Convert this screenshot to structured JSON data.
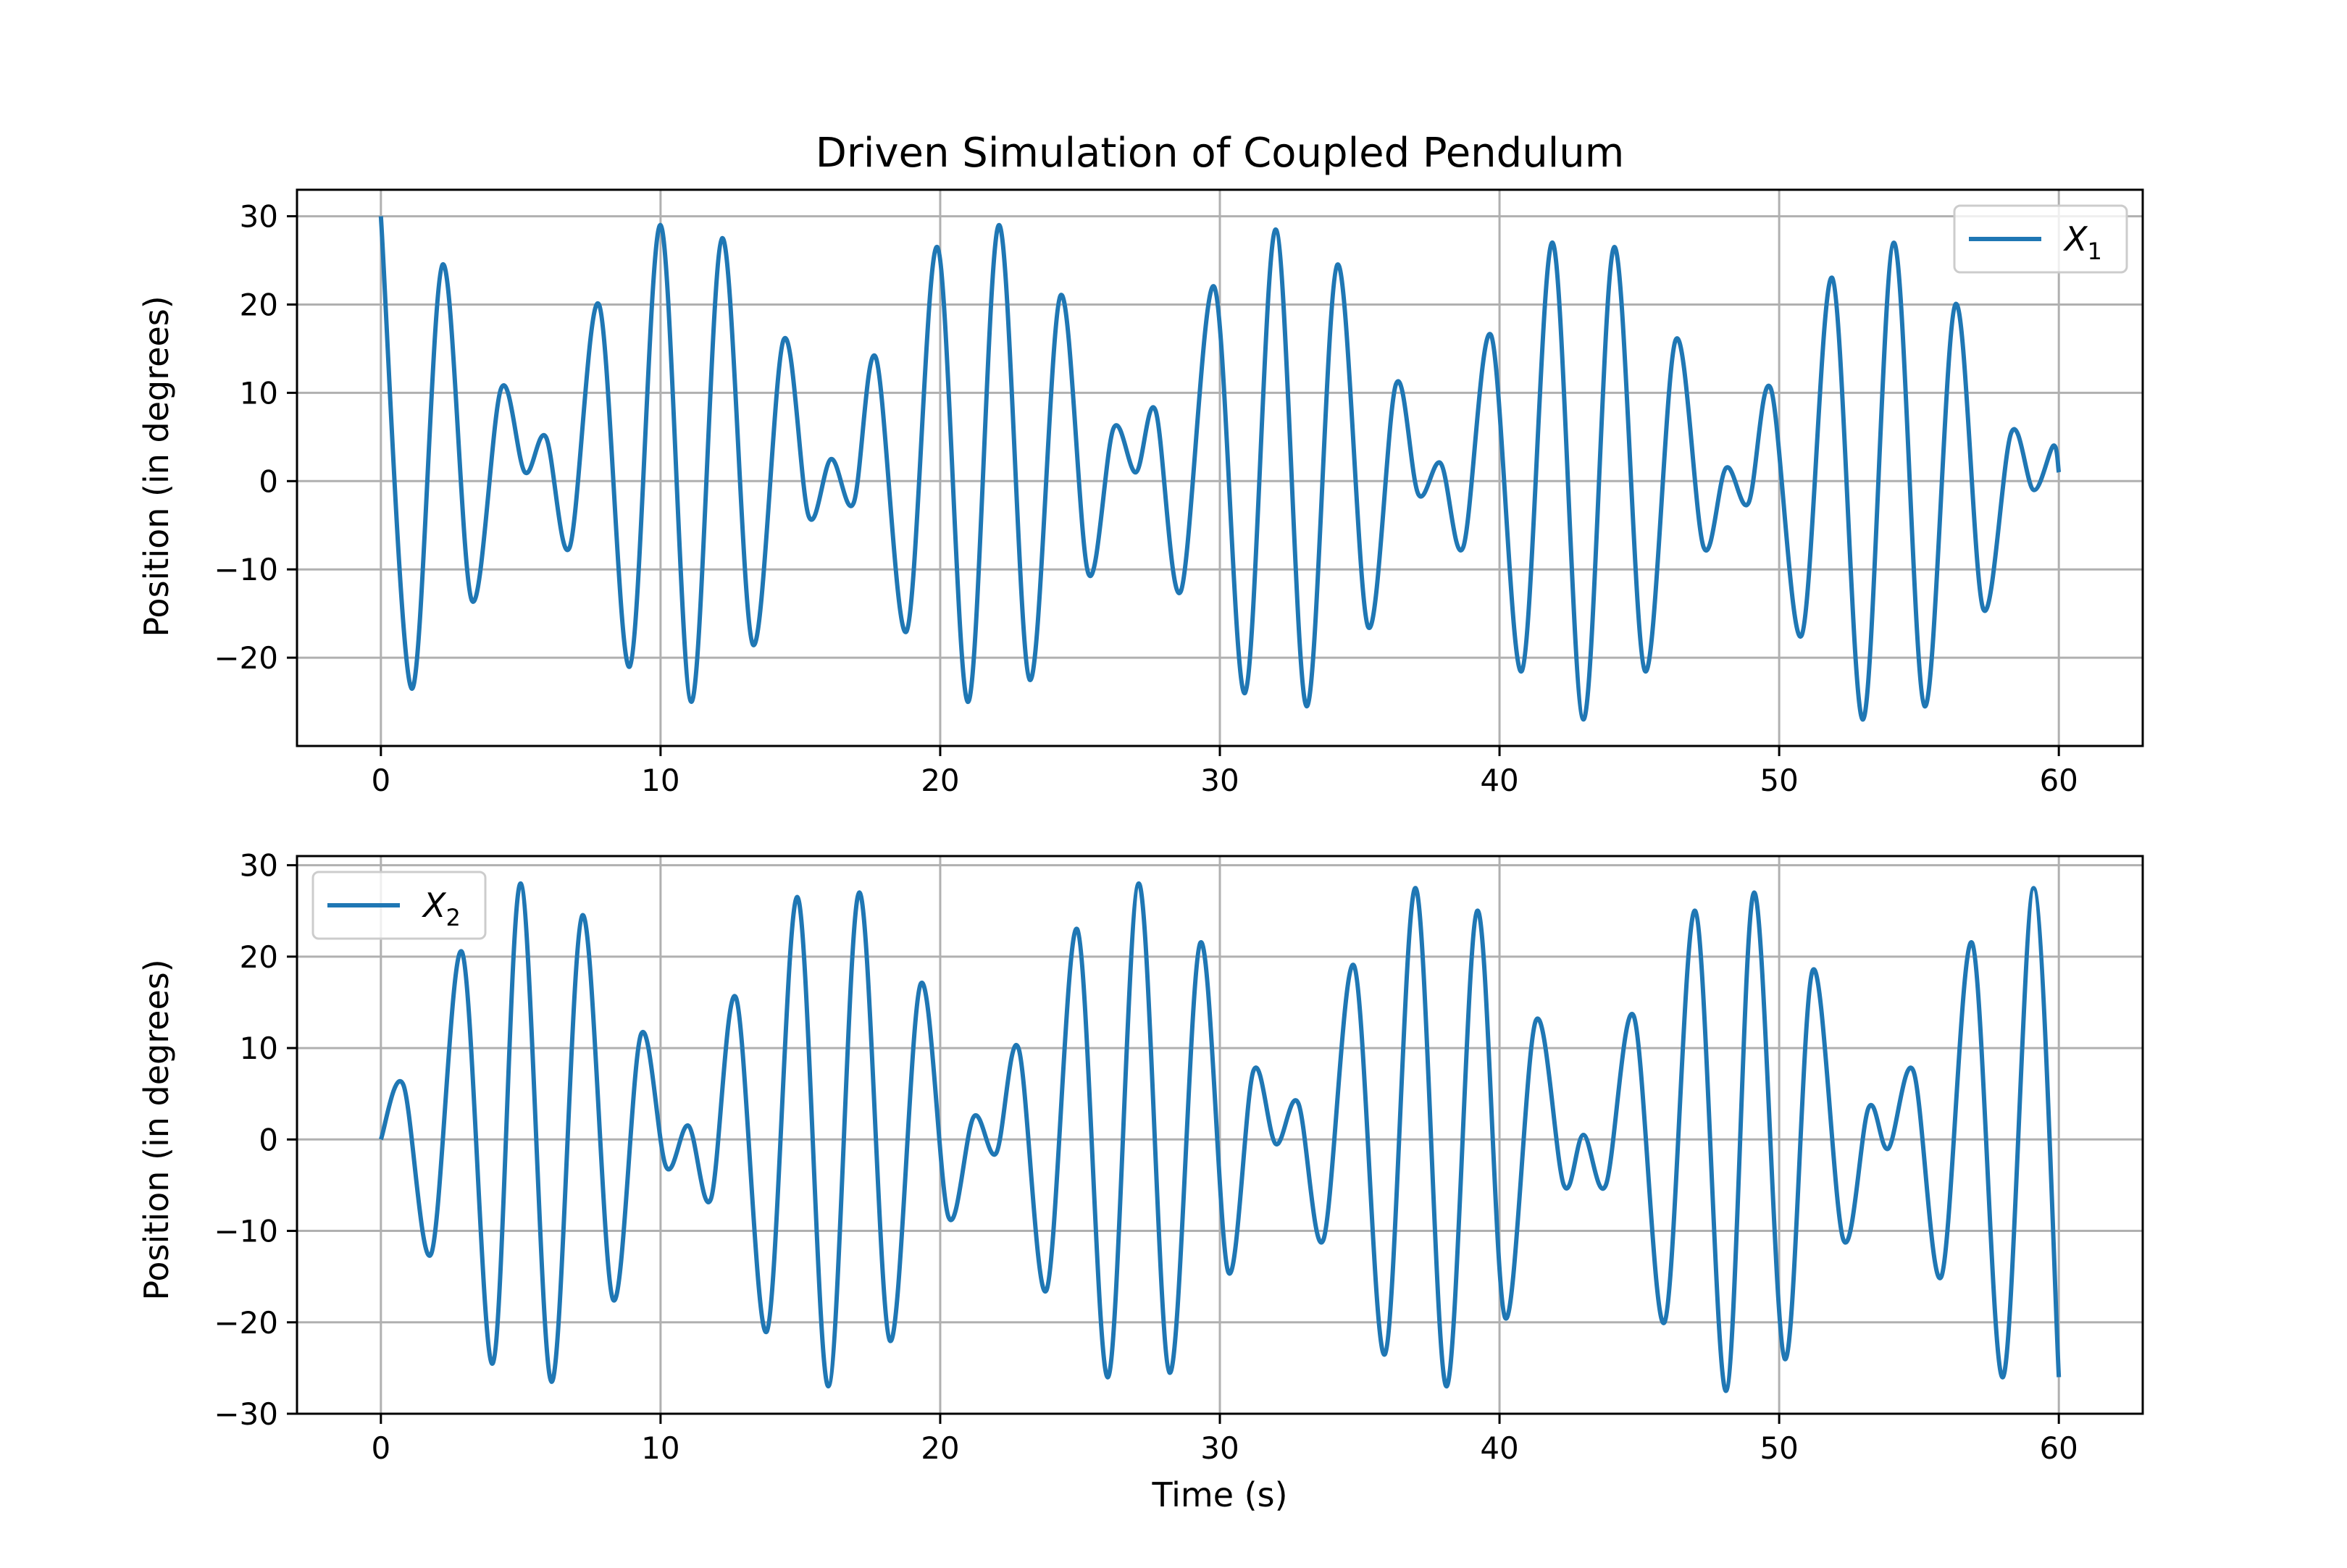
{
  "chart_data": [
    {
      "type": "line",
      "title": "Driven Simulation of Coupled Pendulum",
      "xlabel": "",
      "ylabel": "Position (in degrees)",
      "xlim": [
        -3,
        63
      ],
      "ylim": [
        -30,
        33
      ],
      "xticks": [
        0,
        10,
        20,
        30,
        40,
        50,
        60
      ],
      "xtick_labels": [
        "0",
        "10",
        "20",
        "30",
        "40",
        "50",
        "60"
      ],
      "yticks": [
        -20,
        -10,
        0,
        10,
        20,
        30
      ],
      "ytick_labels": [
        "−20",
        "−10",
        "0",
        "10",
        "20",
        "30"
      ],
      "grid": true,
      "legend_position": "upper right",
      "series": [
        {
          "name": "X",
          "name_subscript": "1",
          "color": "#1f77b4",
          "x": [
            0,
            1.1,
            2.2,
            3.25,
            4.3,
            5.15,
            5.9,
            6.75,
            7.8,
            8.9,
            10.0,
            11.1,
            12.2,
            13.3,
            14.4,
            15.3,
            16.1,
            16.9,
            17.7,
            18.8,
            19.9,
            21.0,
            22.1,
            23.2,
            24.3,
            25.3,
            26.2,
            27.0,
            27.7,
            28.6,
            29.8,
            30.9,
            32.0,
            33.1,
            34.2,
            35.3,
            36.3,
            37.1,
            37.9,
            38.7,
            39.7,
            40.8,
            41.9,
            43.0,
            44.1,
            45.2,
            46.3,
            47.3,
            48.1,
            48.9,
            49.7,
            50.8,
            51.9,
            53.0,
            54.1,
            55.2,
            56.3,
            57.3,
            58.3,
            59.1,
            59.8,
            60.0
          ],
          "y": [
            30,
            -23.5,
            24.5,
            -13.5,
            10.5,
            1,
            5,
            -7.5,
            20,
            -21,
            29,
            -25,
            27.5,
            -18.5,
            16,
            -4,
            2.5,
            -2.5,
            14,
            -17,
            26.5,
            -25,
            29,
            -22.5,
            21,
            -10.5,
            6,
            1,
            8,
            -12.5,
            22,
            -24,
            28.5,
            -25.5,
            24.5,
            -16.5,
            11,
            -1.5,
            2,
            -7.5,
            16.5,
            -21.5,
            27,
            -27,
            26.5,
            -21.5,
            16,
            -7.5,
            1.5,
            -2.5,
            10.5,
            -17.5,
            23,
            -27,
            27,
            -25.5,
            20,
            -14.5,
            5.5,
            -1,
            4,
            1
          ]
        }
      ]
    },
    {
      "type": "line",
      "title": "",
      "xlabel": "Time (s)",
      "ylabel": "Position (in degrees)",
      "xlim": [
        -3,
        63
      ],
      "ylim": [
        -30,
        31
      ],
      "xticks": [
        0,
        10,
        20,
        30,
        40,
        50,
        60
      ],
      "xtick_labels": [
        "0",
        "10",
        "20",
        "30",
        "40",
        "50",
        "60"
      ],
      "yticks": [
        -30,
        -20,
        -10,
        0,
        10,
        20,
        30
      ],
      "ytick_labels": [
        "−30",
        "−20",
        "−10",
        "0",
        "10",
        "20",
        "30"
      ],
      "grid": true,
      "legend_position": "upper left",
      "series": [
        {
          "name": "X",
          "name_subscript": "2",
          "color": "#1f77b4",
          "x": [
            0,
            0.8,
            1.8,
            2.9,
            4.0,
            5.0,
            6.1,
            7.2,
            8.3,
            9.3,
            10.2,
            11.0,
            11.8,
            12.7,
            13.8,
            14.9,
            16.0,
            17.1,
            18.2,
            19.3,
            20.3,
            21.2,
            22.0,
            22.8,
            23.8,
            24.9,
            26.0,
            27.1,
            28.2,
            29.3,
            30.3,
            31.2,
            32.0,
            32.8,
            33.7,
            34.8,
            35.9,
            37.0,
            38.1,
            39.2,
            40.2,
            41.3,
            42.3,
            43.0,
            43.8,
            44.8,
            45.9,
            47.0,
            48.1,
            49.1,
            50.2,
            51.2,
            52.3,
            53.2,
            53.9,
            54.8,
            55.8,
            56.9,
            58.0,
            59.1,
            60.0
          ],
          "y": [
            0,
            6,
            -12.5,
            20.5,
            -24.5,
            28,
            -26.5,
            24.5,
            -17.5,
            11.5,
            -3,
            1.5,
            -6.5,
            15.5,
            -21,
            26.5,
            -27,
            27,
            -22,
            17,
            -8.5,
            2.5,
            -1.5,
            10,
            -16.5,
            23,
            -26,
            28,
            -25.5,
            21.5,
            -14.5,
            7.5,
            -0.5,
            4,
            -11,
            19,
            -23.5,
            27.5,
            -27,
            25,
            -19.5,
            13,
            -5,
            0.5,
            -5,
            13.5,
            -20,
            25,
            -27.5,
            27,
            -24,
            18.5,
            -11,
            3.5,
            -1,
            7.5,
            -15,
            21.5,
            -26,
            27.5,
            -26
          ]
        }
      ]
    }
  ]
}
